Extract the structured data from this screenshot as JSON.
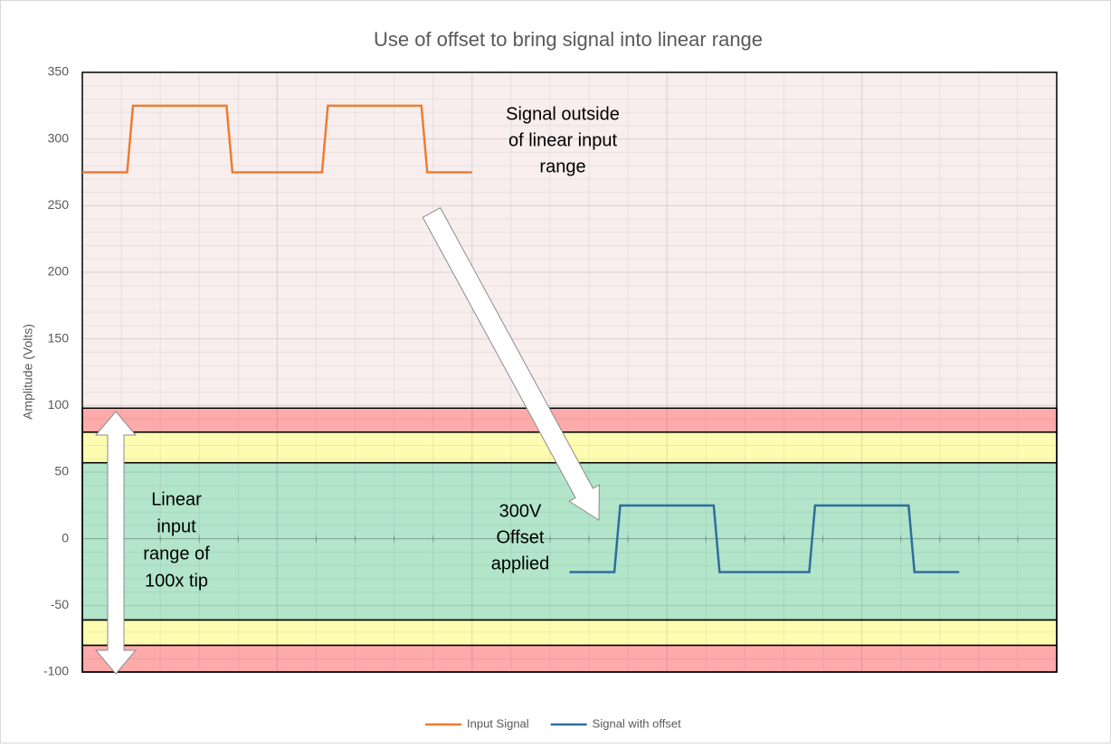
{
  "chart_data": {
    "type": "line",
    "title": "Use of offset to bring signal into linear range",
    "y_label": "Amplitude (Volts)",
    "ylim": [
      -100,
      350
    ],
    "yticks": [
      -100,
      -50,
      0,
      50,
      100,
      150,
      200,
      250,
      300,
      350
    ],
    "xlim": [
      0,
      50
    ],
    "xticks": [
      0,
      10,
      20,
      30,
      40,
      50
    ],
    "grid": true,
    "legend": "bottom",
    "zones": [
      {
        "from": 80,
        "to": 98,
        "color": "#fcaaaa"
      },
      {
        "from": 57,
        "to": 80,
        "color": "#fdfcb0"
      },
      {
        "from": -61,
        "to": 57,
        "color": "#b2e5ca"
      },
      {
        "from": -80,
        "to": -61,
        "color": "#fdfcb0"
      },
      {
        "from": -100,
        "to": -80,
        "color": "#fcaaaa"
      }
    ],
    "series": [
      {
        "name": "Input Signal",
        "color": "#ed7d31",
        "x": [
          0,
          2.3,
          2.6,
          7.4,
          7.7,
          12.3,
          12.6,
          17.4,
          17.7,
          20
        ],
        "values": [
          275,
          275,
          325,
          325,
          275,
          275,
          325,
          325,
          275,
          275
        ]
      },
      {
        "name": "Signal with offset",
        "color": "#2e6e9e",
        "x": [
          25,
          27.3,
          27.6,
          32.4,
          32.7,
          37.3,
          37.6,
          42.4,
          42.7,
          45
        ],
        "values": [
          -25,
          -25,
          25,
          25,
          -25,
          -25,
          25,
          25,
          -25,
          -25
        ]
      }
    ],
    "annotations": [
      {
        "lines": [
          "Signal outside",
          "of linear input",
          "range"
        ]
      },
      {
        "lines": [
          "300V",
          "Offset",
          "applied"
        ]
      },
      {
        "lines": [
          "Linear",
          "input",
          "range of",
          "100x tip"
        ]
      }
    ]
  }
}
